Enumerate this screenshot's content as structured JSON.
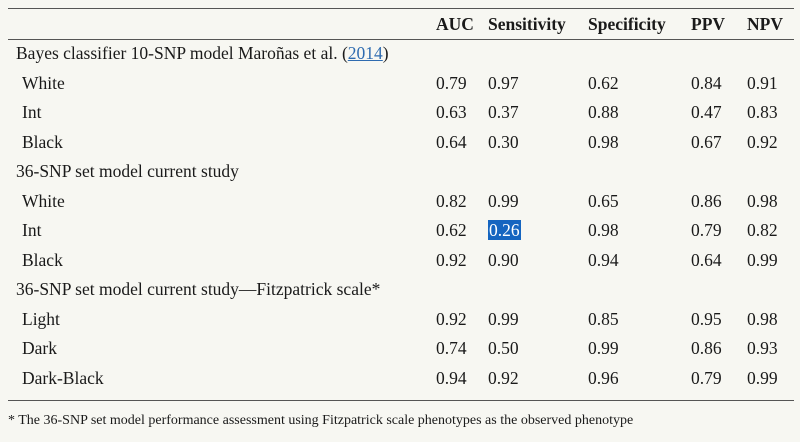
{
  "headers": [
    "",
    "AUC",
    "Sensitivity",
    "Specificity",
    "PPV",
    "NPV"
  ],
  "groups": [
    {
      "title_prefix": "Bayes classifier 10-SNP model Maroñas et al. (",
      "title_link": "2014",
      "title_suffix": ")",
      "rows": [
        {
          "label": "White",
          "values": [
            "0.79",
            "0.97",
            "0.62",
            "0.84",
            "0.91"
          ]
        },
        {
          "label": "Int",
          "values": [
            "0.63",
            "0.37",
            "0.88",
            "0.47",
            "0.83"
          ]
        },
        {
          "label": "Black",
          "values": [
            "0.64",
            "0.30",
            "0.98",
            "0.67",
            "0.92"
          ]
        }
      ]
    },
    {
      "title_prefix": "36-SNP set model current study",
      "title_link": "",
      "title_suffix": "",
      "rows": [
        {
          "label": "White",
          "values": [
            "0.82",
            "0.99",
            "0.65",
            "0.86",
            "0.98"
          ]
        },
        {
          "label": "Int",
          "values": [
            "0.62",
            "0.26",
            "0.98",
            "0.79",
            "0.82"
          ]
        },
        {
          "label": "Black",
          "values": [
            "0.92",
            "0.90",
            "0.94",
            "0.64",
            "0.99"
          ]
        }
      ]
    },
    {
      "title_prefix": "36-SNP set model current study—Fitzpatrick scale*",
      "title_link": "",
      "title_suffix": "",
      "rows": [
        {
          "label": "Light",
          "values": [
            "0.92",
            "0.99",
            "0.85",
            "0.95",
            "0.98"
          ]
        },
        {
          "label": "Dark",
          "values": [
            "0.74",
            "0.50",
            "0.99",
            "0.86",
            "0.93"
          ]
        },
        {
          "label": "Dark-Black",
          "values": [
            "0.94",
            "0.92",
            "0.96",
            "0.79",
            "0.99"
          ]
        }
      ]
    }
  ],
  "highlighted_cell": {
    "value": "0.26"
  },
  "footnote": "* The 36-SNP set model performance assessment using Fitzpatrick scale phenotypes as the observed phenotype",
  "colors": {
    "highlight": "#1565c0",
    "link": "#2e6bb0"
  }
}
